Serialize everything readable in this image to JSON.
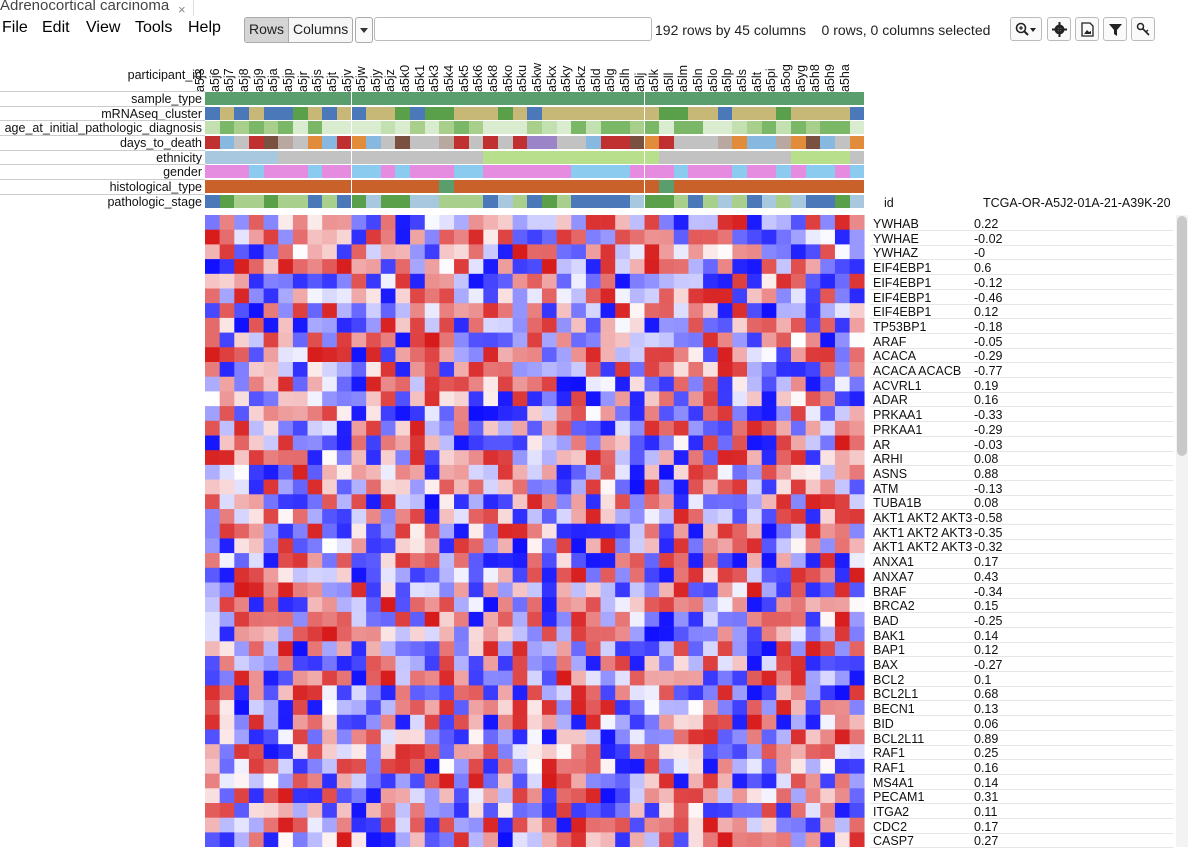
{
  "tab": {
    "title": "Adrenocortical carcinoma",
    "close": "×"
  },
  "menu": [
    "File",
    "Edit",
    "View",
    "Tools",
    "Help"
  ],
  "toolbar": {
    "rows_label": "Rows",
    "columns_label": "Columns",
    "search_placeholder": "",
    "status_rows": "192 rows by 45 columns",
    "status_selected": "0 rows, 0 columns selected",
    "tools": [
      "zoom-icon",
      "gear-icon",
      "image-icon",
      "filter-icon",
      "key-icon"
    ]
  },
  "header": {
    "participant_id_label": "participant_id",
    "tracks": [
      "sample_type",
      "mRNAseq_cluster",
      "age_at_initial_pathologic_diagnosis",
      "days_to_death",
      "ethnicity",
      "gender",
      "histological_type",
      "pathologic_stage"
    ],
    "id_label": "id",
    "id_value": "TCGA-OR-A5J2-01A-21-A39K-20"
  },
  "columns": [
    "a5j3",
    "a5j6",
    "a5j7",
    "a5j8",
    "a5j9",
    "a5ja",
    "a5jp",
    "a5jr",
    "a5js",
    "a5jt",
    "a5jv",
    "a5jw",
    "a5jy",
    "a5jz",
    "a5k0",
    "a5k1",
    "a5k3",
    "a5k4",
    "a5k5",
    "a5k6",
    "a5k8",
    "a5ko",
    "a5ku",
    "a5kw",
    "a5kx",
    "a5ky",
    "a5kz",
    "a5ld",
    "a5lg",
    "a5lh",
    "a5lj",
    "a5lk",
    "a5ll",
    "a5lm",
    "a5ln",
    "a5lo",
    "a5lp",
    "a5ls",
    "a5lt",
    "a5pi",
    "a5og",
    "a5yg",
    "a5h8",
    "a5h9",
    "a5ha"
  ],
  "rows": [
    {
      "label": "YWHAB",
      "value": "0.22"
    },
    {
      "label": "YWHAE",
      "value": "-0.02"
    },
    {
      "label": "YWHAZ",
      "value": "-0"
    },
    {
      "label": "EIF4EBP1",
      "value": "0.6"
    },
    {
      "label": "EIF4EBP1",
      "value": "-0.12"
    },
    {
      "label": "EIF4EBP1",
      "value": "-0.46"
    },
    {
      "label": "EIF4EBP1",
      "value": "0.12"
    },
    {
      "label": "TP53BP1",
      "value": "-0.18"
    },
    {
      "label": "ARAF",
      "value": "-0.05"
    },
    {
      "label": "ACACA",
      "value": "-0.29"
    },
    {
      "label": "ACACA ACACB",
      "value": "-0.77"
    },
    {
      "label": "ACVRL1",
      "value": "0.19"
    },
    {
      "label": "ADAR",
      "value": "0.16"
    },
    {
      "label": "PRKAA1",
      "value": "-0.33"
    },
    {
      "label": "PRKAA1",
      "value": "-0.29"
    },
    {
      "label": "AR",
      "value": "-0.03"
    },
    {
      "label": "ARHI",
      "value": "0.08"
    },
    {
      "label": "ASNS",
      "value": "0.88"
    },
    {
      "label": "ATM",
      "value": "-0.13"
    },
    {
      "label": "TUBA1B",
      "value": "0.08"
    },
    {
      "label": "AKT1 AKT2 AKT3",
      "value": "-0.58"
    },
    {
      "label": "AKT1 AKT2 AKT3",
      "value": "-0.35"
    },
    {
      "label": "AKT1 AKT2 AKT3",
      "value": "-0.32"
    },
    {
      "label": "ANXA1",
      "value": "0.17"
    },
    {
      "label": "ANXA7",
      "value": "0.43"
    },
    {
      "label": "BRAF",
      "value": "-0.34"
    },
    {
      "label": "BRCA2",
      "value": "0.15"
    },
    {
      "label": "BAD",
      "value": "-0.25"
    },
    {
      "label": "BAK1",
      "value": "0.14"
    },
    {
      "label": "BAP1",
      "value": "0.12"
    },
    {
      "label": "BAX",
      "value": "-0.27"
    },
    {
      "label": "BCL2",
      "value": "0.1"
    },
    {
      "label": "BCL2L1",
      "value": "0.68"
    },
    {
      "label": "BECN1",
      "value": "0.13"
    },
    {
      "label": "BID",
      "value": "0.06"
    },
    {
      "label": "BCL2L11",
      "value": "0.89"
    },
    {
      "label": "RAF1",
      "value": "0.25"
    },
    {
      "label": "RAF1",
      "value": "0.16"
    },
    {
      "label": "MS4A1",
      "value": "0.14"
    },
    {
      "label": "PECAM1",
      "value": "0.31"
    },
    {
      "label": "ITGA2",
      "value": "0.11"
    },
    {
      "label": "CDC2",
      "value": "0.17"
    },
    {
      "label": "CASP7",
      "value": "0.27"
    }
  ],
  "colors": {
    "high": "#d7191c",
    "low": "#1a1aff",
    "neutral": "#ffffff",
    "sample_type": "#5b9e6e",
    "histological": "#c8612a"
  }
}
